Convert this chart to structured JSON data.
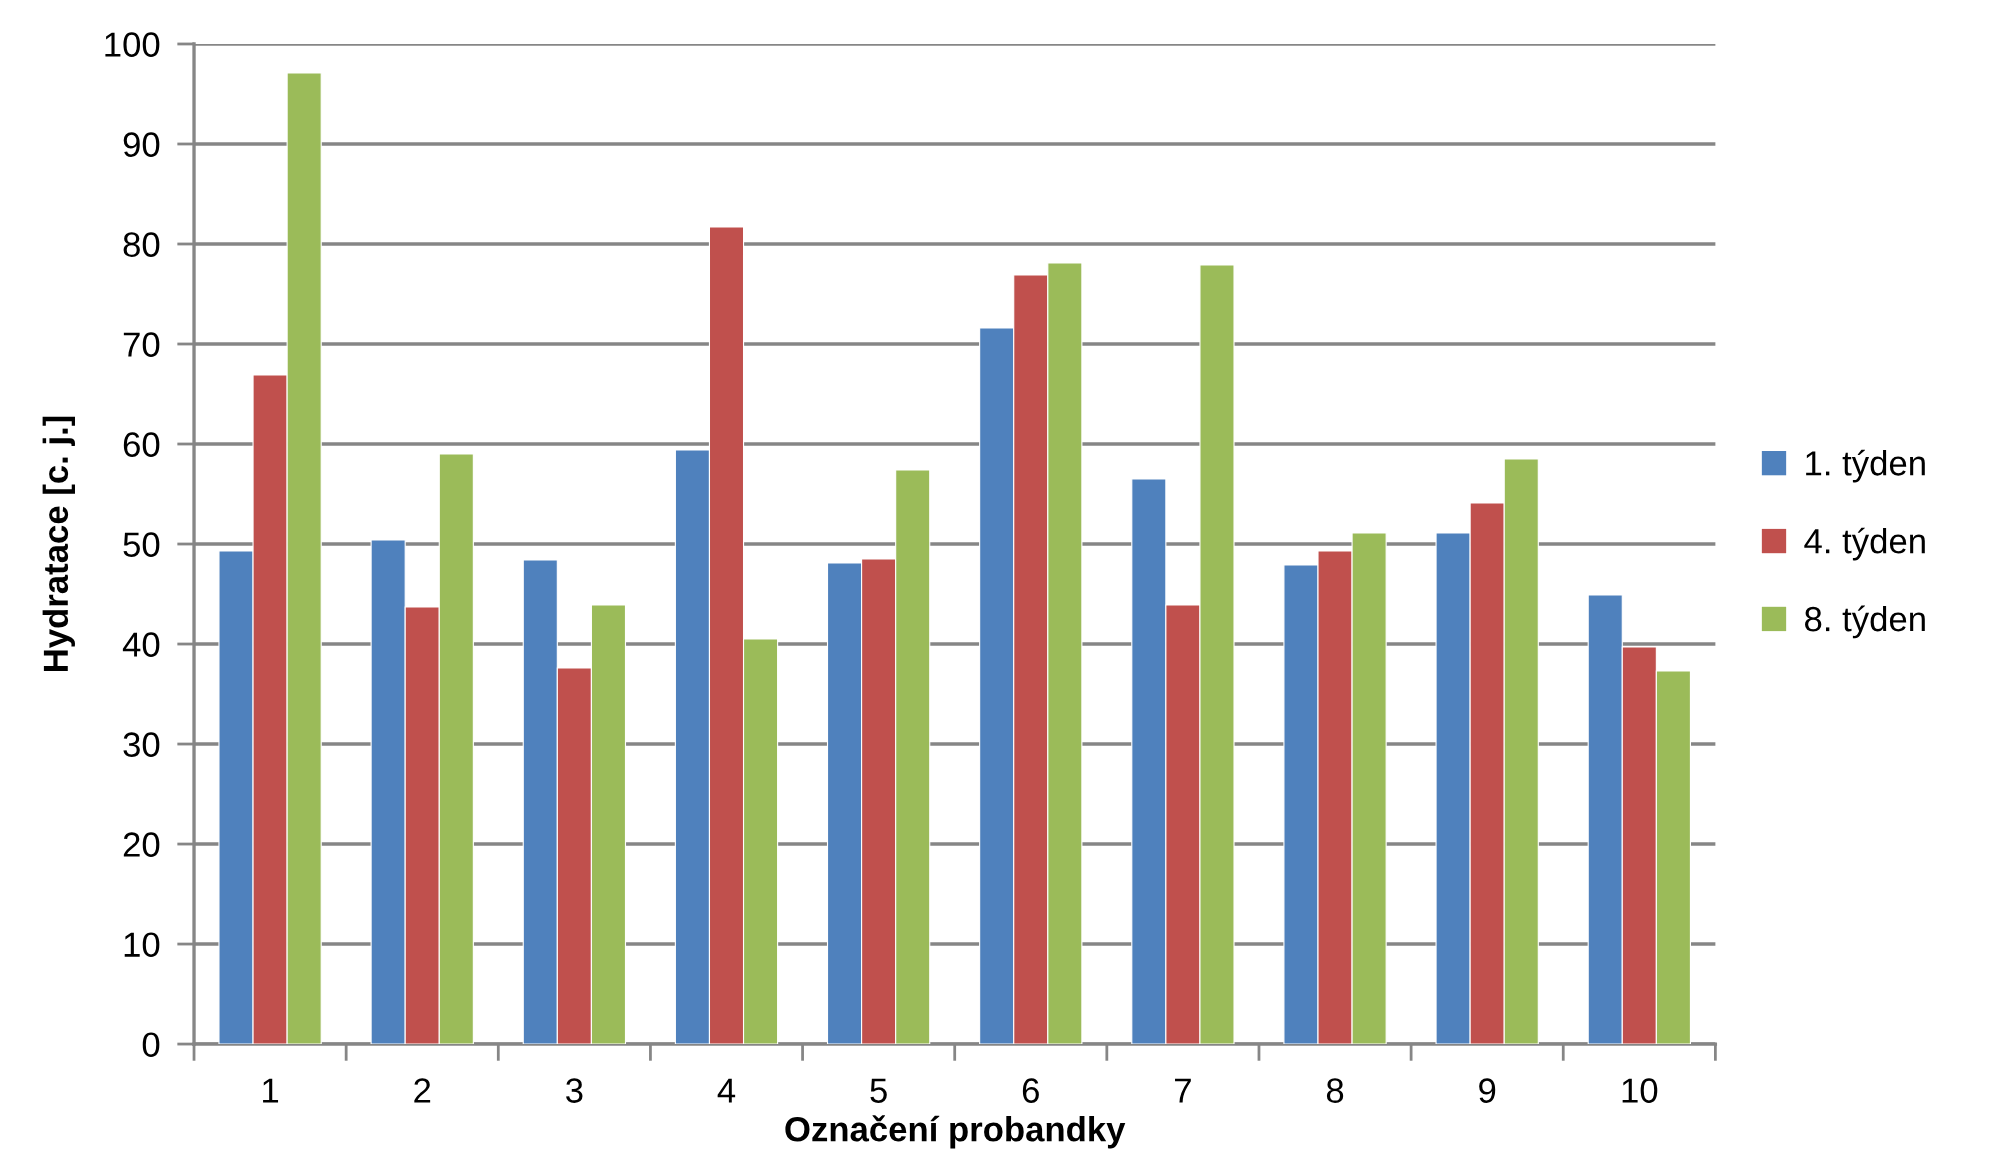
{
  "chart_data": {
    "type": "bar",
    "xlabel": "Označení probandky",
    "ylabel": "Hydratace [c. j.]",
    "categories": [
      "1",
      "2",
      "3",
      "4",
      "5",
      "6",
      "7",
      "8",
      "9",
      "10"
    ],
    "series": [
      {
        "name": "1. týden",
        "color": "#4f81bd",
        "values": [
          49.3,
          50.4,
          48.4,
          59.4,
          48.1,
          71.6,
          56.5,
          47.9,
          51.1,
          44.9
        ]
      },
      {
        "name": "4. týden",
        "color": "#c0504d",
        "values": [
          66.9,
          43.7,
          37.6,
          81.7,
          48.5,
          76.9,
          43.9,
          49.3,
          54.1,
          39.7
        ]
      },
      {
        "name": "8. týden",
        "color": "#9bbb59",
        "values": [
          97.1,
          59.0,
          43.9,
          40.5,
          57.4,
          78.1,
          77.9,
          51.1,
          58.5,
          37.3
        ]
      }
    ],
    "ylim": [
      0,
      100
    ],
    "yticks": [
      0,
      10,
      20,
      30,
      40,
      50,
      60,
      70,
      80,
      90,
      100
    ],
    "grid": "y",
    "legend": "right"
  }
}
